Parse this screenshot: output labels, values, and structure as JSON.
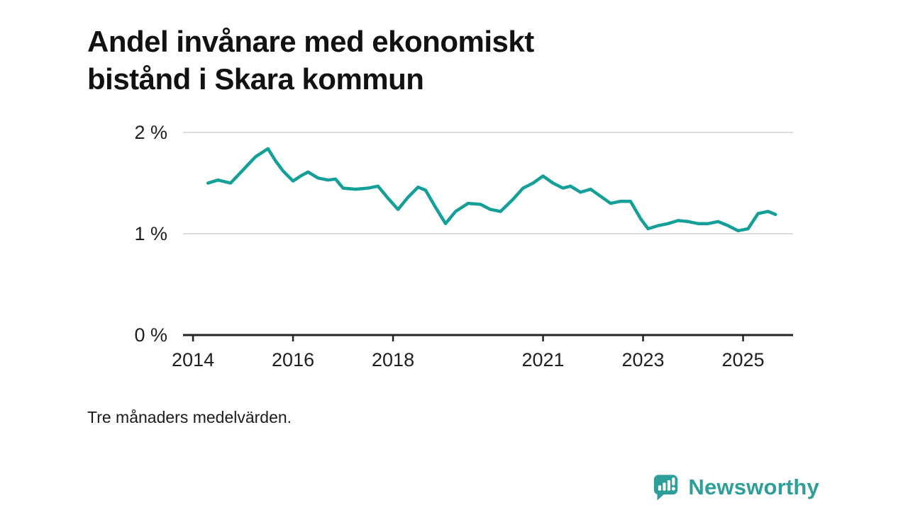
{
  "title": "Andel invånare med ekonomiskt\nbistånd i Skara kommun",
  "footnote": "Tre månaders medelvärden.",
  "brand": {
    "name": "Newsworthy",
    "color": "#2E9E99",
    "icon": "bar-chart-speech-bubble-icon"
  },
  "colors": {
    "line": "#14A098",
    "grid": "#dcdcdc",
    "axis": "#222222",
    "text": "#1f1f1f"
  },
  "chart_data": {
    "type": "line",
    "title": "Andel invånare med ekonomiskt bistånd i Skara kommun",
    "xlabel": "",
    "ylabel": "",
    "ylim": [
      0,
      2
    ],
    "xlim": [
      2013.8,
      2026.0
    ],
    "grid": "horizontal",
    "legend": "none",
    "yticks": {
      "values": [
        0,
        1,
        2
      ],
      "labels": [
        "0 %",
        "1 %",
        "2 %"
      ]
    },
    "xticks": {
      "values": [
        2014,
        2016,
        2018,
        2021,
        2023,
        2025
      ],
      "labels": [
        "2014",
        "2016",
        "2018",
        "2021",
        "2023",
        "2025"
      ]
    },
    "series": [
      {
        "name": "Andel invånare med ekonomiskt bistånd",
        "color": "#14A098",
        "x": [
          2014.3,
          2014.5,
          2014.75,
          2015.0,
          2015.25,
          2015.5,
          2015.65,
          2015.8,
          2016.0,
          2016.15,
          2016.3,
          2016.5,
          2016.7,
          2016.85,
          2017.0,
          2017.25,
          2017.5,
          2017.7,
          2017.9,
          2018.1,
          2018.3,
          2018.5,
          2018.65,
          2018.85,
          2019.05,
          2019.25,
          2019.5,
          2019.75,
          2019.95,
          2020.15,
          2020.4,
          2020.6,
          2020.8,
          2021.0,
          2021.2,
          2021.4,
          2021.55,
          2021.75,
          2021.95,
          2022.15,
          2022.35,
          2022.55,
          2022.75,
          2022.95,
          2023.1,
          2023.3,
          2023.5,
          2023.7,
          2023.9,
          2024.1,
          2024.3,
          2024.5,
          2024.7,
          2024.9,
          2025.1,
          2025.3,
          2025.5,
          2025.65
        ],
        "y": [
          1.5,
          1.53,
          1.5,
          1.63,
          1.76,
          1.84,
          1.72,
          1.62,
          1.52,
          1.57,
          1.61,
          1.55,
          1.53,
          1.54,
          1.45,
          1.44,
          1.45,
          1.47,
          1.35,
          1.24,
          1.36,
          1.46,
          1.43,
          1.26,
          1.1,
          1.22,
          1.3,
          1.29,
          1.24,
          1.22,
          1.34,
          1.45,
          1.5,
          1.57,
          1.5,
          1.45,
          1.47,
          1.41,
          1.44,
          1.37,
          1.3,
          1.32,
          1.32,
          1.15,
          1.05,
          1.08,
          1.1,
          1.13,
          1.12,
          1.1,
          1.1,
          1.12,
          1.08,
          1.03,
          1.05,
          1.2,
          1.22,
          1.19
        ]
      }
    ]
  }
}
